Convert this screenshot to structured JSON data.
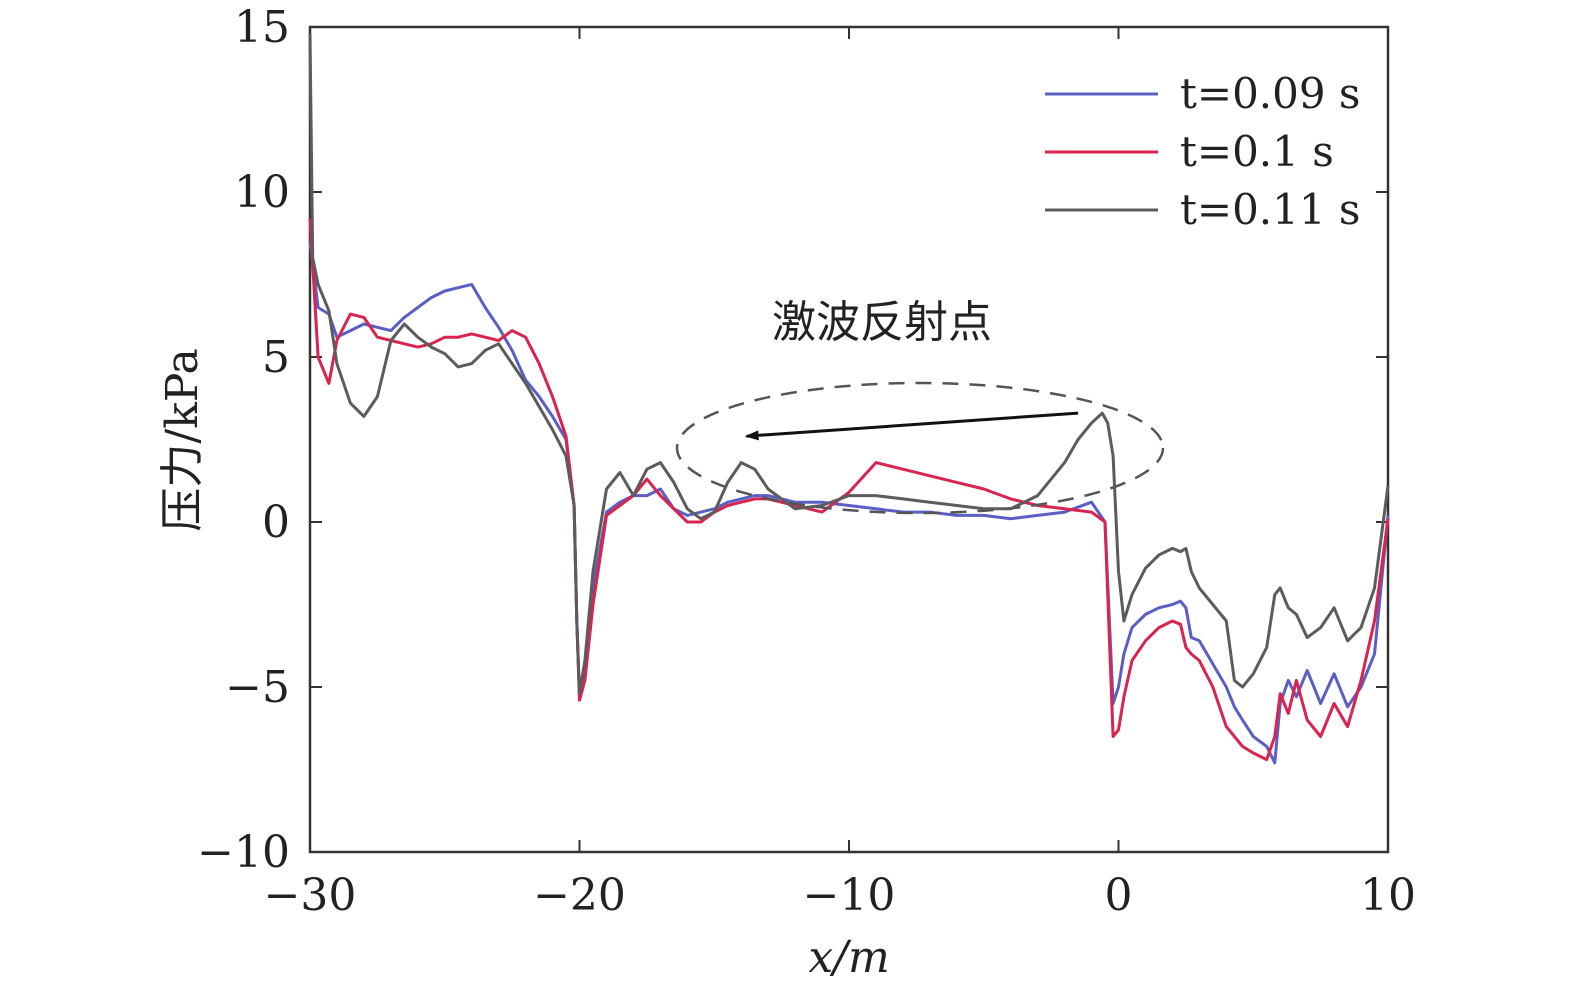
{
  "chart_data": {
    "type": "line",
    "title": "",
    "xlabel": "x/m",
    "ylabel": "压力/kPa",
    "xlim": [
      -30,
      10
    ],
    "ylim": [
      -10,
      15
    ],
    "xticks": [
      -30,
      -20,
      -10,
      0,
      10
    ],
    "xtick_labels": [
      "−30",
      "−20",
      "−10",
      "0",
      "10"
    ],
    "yticks": [
      -10,
      -5,
      0,
      5,
      10,
      15
    ],
    "ytick_labels": [
      "−10",
      "−5",
      "0",
      "5",
      "10",
      "15"
    ],
    "grid": false,
    "legend_position": "top-right",
    "annotation": {
      "text": "激波反射点",
      "arrow_from": [
        -1.5,
        3.3
      ],
      "arrow_to": [
        -13.8,
        2.6
      ]
    },
    "series": [
      {
        "name": "t=0.09 s",
        "color": "#5a5fc6",
        "x": [
          -30,
          -29.7,
          -29.3,
          -29,
          -28.5,
          -28,
          -27.5,
          -27,
          -26.5,
          -26,
          -25.5,
          -25,
          -24.5,
          -24,
          -23.5,
          -23,
          -22.5,
          -22,
          -21.5,
          -21,
          -20.5,
          -20.2,
          -20.1,
          -20,
          -19.8,
          -19.5,
          -19,
          -18.5,
          -18,
          -17.5,
          -17,
          -16.5,
          -16,
          -15.5,
          -15,
          -14.5,
          -14,
          -13.5,
          -13,
          -12,
          -11,
          -10,
          -9,
          -8,
          -7,
          -6,
          -5,
          -4,
          -3,
          -2,
          -1,
          -0.5,
          -0.2,
          0,
          0.2,
          0.5,
          1,
          1.5,
          2,
          2.3,
          2.5,
          2.7,
          3,
          3.5,
          4,
          4.3,
          4.6,
          5,
          5.5,
          5.8,
          6,
          6.3,
          6.6,
          7,
          7.5,
          8,
          8.5,
          9,
          9.5,
          10
        ],
        "values": [
          8.5,
          6.5,
          6.3,
          5.6,
          5.8,
          6.0,
          5.9,
          5.8,
          6.2,
          6.5,
          6.8,
          7.0,
          7.1,
          7.2,
          6.5,
          5.9,
          5.2,
          4.3,
          3.8,
          3.2,
          2.5,
          0.5,
          -3.0,
          -5.3,
          -4.5,
          -2.0,
          0.3,
          0.6,
          0.8,
          0.8,
          1.0,
          0.4,
          0.2,
          0.3,
          0.4,
          0.6,
          0.7,
          0.8,
          0.8,
          0.6,
          0.6,
          0.5,
          0.4,
          0.3,
          0.3,
          0.2,
          0.2,
          0.1,
          0.2,
          0.3,
          0.6,
          0.0,
          -5.5,
          -5.0,
          -4.0,
          -3.2,
          -2.8,
          -2.6,
          -2.5,
          -2.4,
          -2.6,
          -3.5,
          -3.6,
          -4.3,
          -5.0,
          -5.6,
          -6.0,
          -6.5,
          -6.8,
          -7.3,
          -5.5,
          -4.8,
          -5.3,
          -4.5,
          -5.5,
          -4.6,
          -5.6,
          -5.0,
          -4.0,
          0.2
        ]
      },
      {
        "name": "t=0.1 s",
        "color": "#d8244e",
        "x": [
          -30,
          -29.7,
          -29.3,
          -29,
          -28.5,
          -28,
          -27.5,
          -27,
          -26.5,
          -26,
          -25.5,
          -25,
          -24.5,
          -24,
          -23.5,
          -23,
          -22.5,
          -22,
          -21.5,
          -21,
          -20.5,
          -20.2,
          -20.1,
          -20,
          -19.8,
          -19.5,
          -19,
          -18.5,
          -18,
          -17.5,
          -17,
          -16.5,
          -16,
          -15.5,
          -15,
          -14.5,
          -14,
          -13.5,
          -13,
          -12,
          -11,
          -10,
          -9,
          -8,
          -7,
          -6,
          -5,
          -4,
          -3,
          -2,
          -1,
          -0.5,
          -0.2,
          0,
          0.2,
          0.5,
          1,
          1.5,
          2,
          2.3,
          2.5,
          2.7,
          3,
          3.5,
          4,
          4.3,
          4.6,
          5,
          5.5,
          5.8,
          6,
          6.3,
          6.6,
          7,
          7.5,
          8,
          8.5,
          9,
          9.5,
          10
        ],
        "values": [
          9.2,
          5.0,
          4.2,
          5.5,
          6.3,
          6.2,
          5.6,
          5.5,
          5.4,
          5.3,
          5.4,
          5.6,
          5.6,
          5.7,
          5.6,
          5.5,
          5.8,
          5.6,
          4.8,
          3.8,
          2.6,
          0.5,
          -3.0,
          -5.4,
          -4.8,
          -2.5,
          0.2,
          0.5,
          0.8,
          1.3,
          0.8,
          0.4,
          0.0,
          0.0,
          0.3,
          0.5,
          0.6,
          0.7,
          0.7,
          0.5,
          0.3,
          0.9,
          1.8,
          1.6,
          1.4,
          1.2,
          1.0,
          0.7,
          0.5,
          0.4,
          0.3,
          0.0,
          -6.5,
          -6.3,
          -5.3,
          -4.2,
          -3.6,
          -3.2,
          -3.0,
          -3.1,
          -3.8,
          -4.0,
          -4.2,
          -5.0,
          -6.2,
          -6.5,
          -6.8,
          -7.0,
          -7.2,
          -6.5,
          -5.2,
          -5.8,
          -4.8,
          -6.0,
          -6.5,
          -5.5,
          -6.2,
          -4.8,
          -3.0,
          0.1
        ]
      },
      {
        "name": "t=0.11 s",
        "color": "#5c5c5c",
        "x": [
          -30,
          -29.9,
          -29.7,
          -29.3,
          -29,
          -28.5,
          -28,
          -27.5,
          -27,
          -26.5,
          -26,
          -25.5,
          -25,
          -24.5,
          -24,
          -23.5,
          -23,
          -22.5,
          -22,
          -21.5,
          -21,
          -20.5,
          -20.2,
          -20.1,
          -20,
          -19.8,
          -19.5,
          -19,
          -18.5,
          -18,
          -17.5,
          -17,
          -16.5,
          -16,
          -15.5,
          -15,
          -14.5,
          -14,
          -13.5,
          -13,
          -12,
          -11,
          -10,
          -9,
          -8,
          -7,
          -6,
          -5,
          -4,
          -3,
          -2,
          -1.5,
          -1,
          -0.6,
          -0.4,
          -0.2,
          0,
          0.2,
          0.5,
          1,
          1.5,
          2,
          2.3,
          2.5,
          2.7,
          3,
          3.5,
          4,
          4.3,
          4.6,
          5,
          5.5,
          5.8,
          6,
          6.3,
          6.6,
          7,
          7.5,
          8,
          8.5,
          9,
          9.5,
          10
        ],
        "values": [
          14.8,
          8.0,
          7.2,
          6.4,
          4.8,
          3.6,
          3.2,
          3.8,
          5.5,
          6.0,
          5.6,
          5.3,
          5.1,
          4.7,
          4.8,
          5.2,
          5.4,
          4.8,
          4.2,
          3.5,
          2.8,
          2.0,
          0.5,
          -3.0,
          -5.2,
          -4.2,
          -1.5,
          1.0,
          1.5,
          0.8,
          1.6,
          1.8,
          1.2,
          0.4,
          0.1,
          0.3,
          1.2,
          1.8,
          1.6,
          1.0,
          0.4,
          0.5,
          0.8,
          0.8,
          0.7,
          0.6,
          0.5,
          0.4,
          0.4,
          0.8,
          1.8,
          2.5,
          3.0,
          3.3,
          3.0,
          2.0,
          -1.5,
          -3.0,
          -2.2,
          -1.4,
          -1.0,
          -0.8,
          -0.9,
          -0.8,
          -1.5,
          -2.0,
          -2.5,
          -3.0,
          -4.8,
          -5.0,
          -4.6,
          -3.8,
          -2.2,
          -2.0,
          -2.6,
          -2.8,
          -3.5,
          -3.2,
          -2.6,
          -3.6,
          -3.2,
          -2.0,
          1.1
        ]
      }
    ]
  }
}
